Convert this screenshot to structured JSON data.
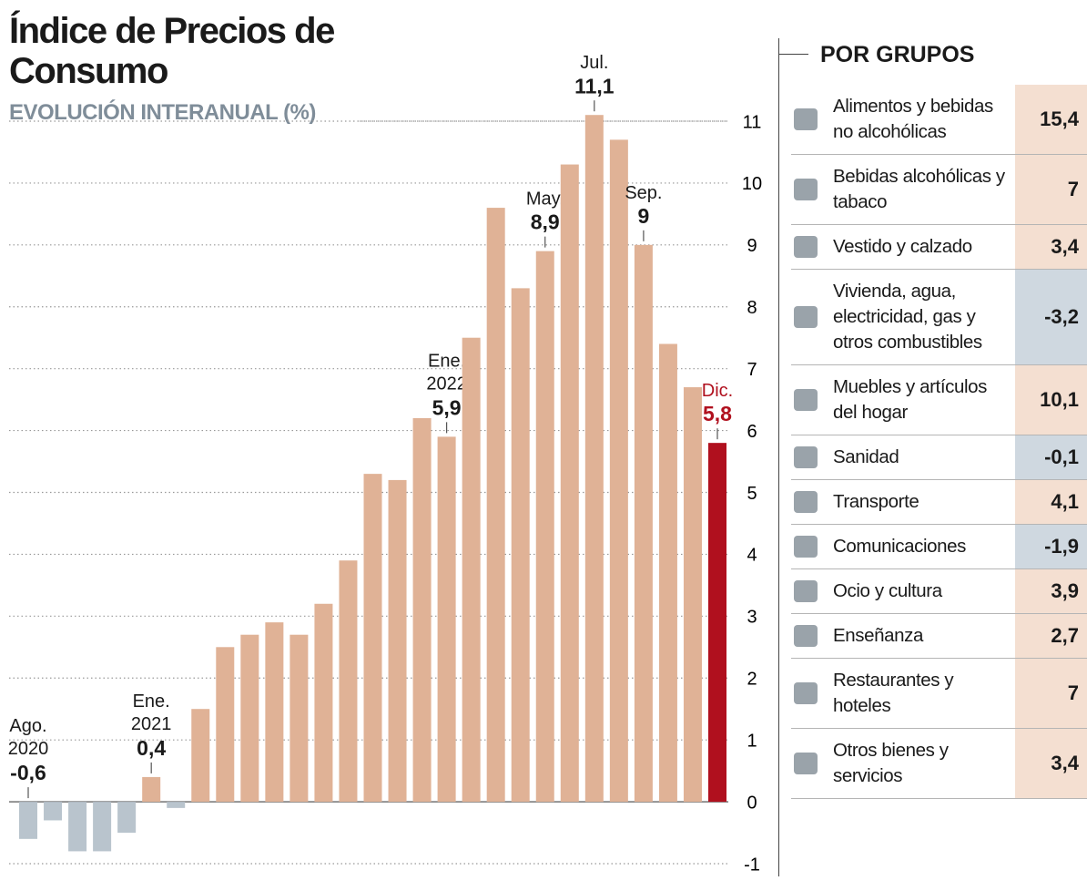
{
  "chart_data": {
    "type": "bar",
    "title": "Índice de Precios de Consumo",
    "subtitle": "EVOLUCIÓN INTERANUAL (%)",
    "categories": [
      "Ago. 2020",
      null,
      null,
      null,
      null,
      "Ene. 2021",
      null,
      null,
      null,
      null,
      null,
      null,
      null,
      null,
      null,
      null,
      null,
      "Ene. 2022",
      null,
      null,
      null,
      "May.",
      null,
      "Jul.",
      null,
      "Sep.",
      null,
      null,
      "Dic."
    ],
    "values": [
      -0.6,
      -0.3,
      -0.8,
      -0.8,
      -0.5,
      0.4,
      -0.1,
      1.5,
      2.5,
      2.7,
      2.9,
      2.7,
      3.2,
      3.9,
      5.3,
      5.2,
      6.2,
      5.9,
      7.5,
      9.6,
      8.3,
      8.9,
      10.3,
      11.1,
      10.7,
      9,
      7.4,
      6.7,
      5.8
    ],
    "value_labels": [
      "-0,6",
      null,
      null,
      null,
      null,
      "0,4",
      null,
      null,
      null,
      null,
      null,
      null,
      null,
      null,
      null,
      null,
      null,
      "5,9",
      null,
      null,
      null,
      "8,9",
      null,
      "11,1",
      null,
      "9",
      null,
      null,
      "5,8"
    ],
    "value_label_colors": [
      "#1a1a1a",
      null,
      null,
      null,
      null,
      "#1a1a1a",
      null,
      null,
      null,
      null,
      null,
      null,
      null,
      null,
      null,
      null,
      null,
      "#1a1a1a",
      null,
      null,
      null,
      "#1a1a1a",
      null,
      "#1a1a1a",
      null,
      "#1a1a1a",
      null,
      null,
      "#b0101e"
    ],
    "colors": [
      "#b9c4cd",
      "#b9c4cd",
      "#b9c4cd",
      "#b9c4cd",
      "#b9c4cd",
      "#e0b296",
      "#b9c4cd",
      "#e0b296",
      "#e0b296",
      "#e0b296",
      "#e0b296",
      "#e0b296",
      "#e0b296",
      "#e0b296",
      "#e0b296",
      "#e0b296",
      "#e0b296",
      "#e0b296",
      "#e0b296",
      "#e0b296",
      "#e0b296",
      "#e0b296",
      "#e0b296",
      "#e0b296",
      "#e0b296",
      "#e0b296",
      "#e0b296",
      "#e0b296",
      "#b0101e"
    ],
    "ylim": [
      -1,
      11
    ],
    "yticks": [
      -1,
      0,
      1,
      2,
      3,
      4,
      5,
      6,
      7,
      8,
      9,
      10,
      11
    ],
    "grid": true
  },
  "groups": {
    "title": "POR GRUPOS",
    "rows": [
      {
        "label": "Alimentos y bebidas no alcohólicas",
        "value": "15,4",
        "color": "#f4dfd1"
      },
      {
        "label": "Bebidas alcohólicas y tabaco",
        "value": "7",
        "color": "#f4dfd1"
      },
      {
        "label": "Vestido y calzado",
        "value": "3,4",
        "color": "#f4dfd1"
      },
      {
        "label": "Vivienda, agua, electricidad, gas y otros combustibles",
        "value": "-3,2",
        "color": "#cfd8e0"
      },
      {
        "label": "Muebles y artículos del hogar",
        "value": "10,1",
        "color": "#f4dfd1"
      },
      {
        "label": "Sanidad",
        "value": "-0,1",
        "color": "#cfd8e0"
      },
      {
        "label": "Transporte",
        "value": "4,1",
        "color": "#f4dfd1"
      },
      {
        "label": "Comunicaciones",
        "value": "-1,9",
        "color": "#cfd8e0"
      },
      {
        "label": "Ocio y cultura",
        "value": "3,9",
        "color": "#f4dfd1"
      },
      {
        "label": "Enseñanza",
        "value": "2,7",
        "color": "#f4dfd1"
      },
      {
        "label": "Restaurantes y hoteles",
        "value": "7",
        "color": "#f4dfd1"
      },
      {
        "label": "Otros bienes y servicios",
        "value": "3,4",
        "color": "#f4dfd1"
      }
    ]
  }
}
